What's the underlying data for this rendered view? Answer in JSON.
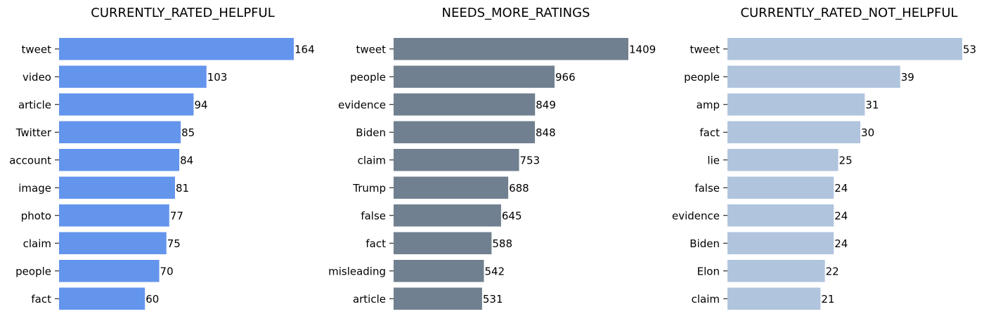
{
  "chart_data": [
    {
      "type": "bar",
      "orientation": "horizontal",
      "title": "CURRENTLY_RATED_HELPFUL",
      "xlabel": "",
      "ylabel": "",
      "color": "#6495ED",
      "categories": [
        "tweet",
        "video",
        "article",
        "Twitter",
        "account",
        "image",
        "photo",
        "claim",
        "people",
        "fact"
      ],
      "values": [
        164,
        103,
        94,
        85,
        84,
        81,
        77,
        75,
        70,
        60
      ],
      "grid": false,
      "axes_visible": false
    },
    {
      "type": "bar",
      "orientation": "horizontal",
      "title": "NEEDS_MORE_RATINGS",
      "xlabel": "",
      "ylabel": "",
      "color": "#708090",
      "categories": [
        "tweet",
        "people",
        "evidence",
        "Biden",
        "claim",
        "Trump",
        "false",
        "fact",
        "misleading",
        "article"
      ],
      "values": [
        1409,
        966,
        849,
        848,
        753,
        688,
        645,
        588,
        542,
        531
      ],
      "grid": false,
      "axes_visible": false
    },
    {
      "type": "bar",
      "orientation": "horizontal",
      "title": "CURRENTLY_RATED_NOT_HELPFUL",
      "xlabel": "",
      "ylabel": "",
      "color": "#B0C4DE",
      "categories": [
        "tweet",
        "people",
        "amp",
        "fact",
        "lie",
        "false",
        "evidence",
        "Biden",
        "Elon",
        "claim"
      ],
      "values": [
        53,
        39,
        31,
        30,
        25,
        24,
        24,
        24,
        22,
        21
      ],
      "grid": false,
      "axes_visible": false
    }
  ]
}
